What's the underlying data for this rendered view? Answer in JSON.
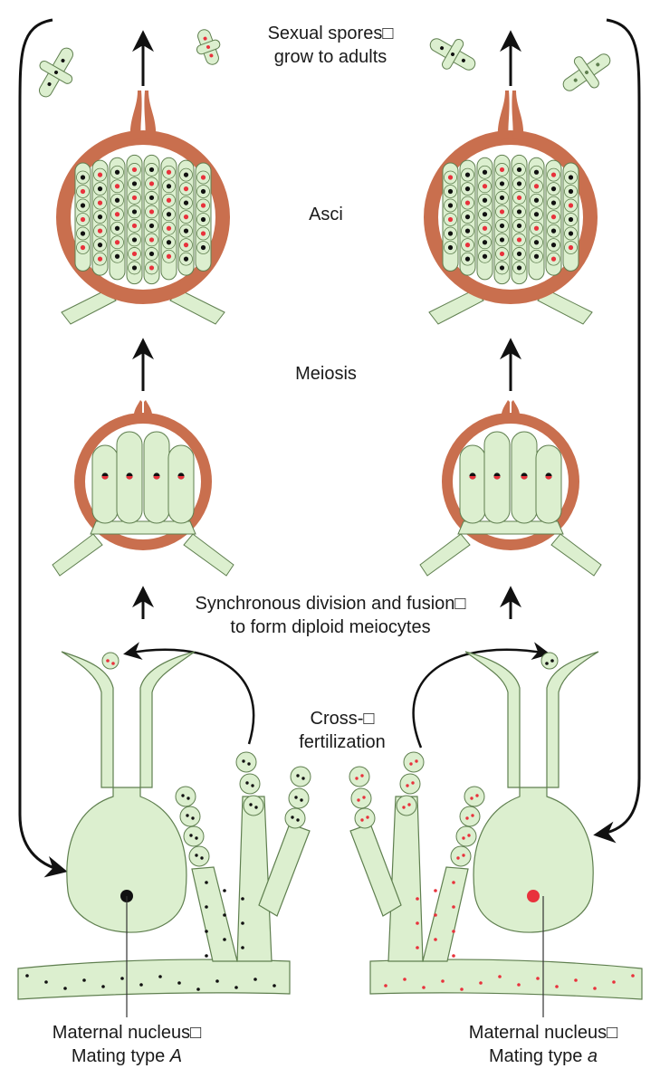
{
  "labels": {
    "sexual_spores": [
      "Sexual spores□",
      "grow to adults"
    ],
    "asci": "Asci",
    "meiosis": "Meiosis",
    "synchronous": [
      "Synchronous division and fusion□",
      "to form diploid meiocytes"
    ],
    "cross_fertilization": [
      "Cross-□",
      "fertilization"
    ],
    "left_maternal": {
      "line1": "Maternal nucleus□",
      "line2_prefix": "Mating type ",
      "line2_italic": "A"
    },
    "right_maternal": {
      "line1": "Maternal nucleus□",
      "line2_prefix": "Mating type ",
      "line2_italic": "a"
    }
  },
  "colors": {
    "cell_fill": "#dcefcf",
    "cell_stroke": "#5f7f4f",
    "perithecium": "#c96f4e",
    "nucleus_A": "#111111",
    "nucleus_a": "#e8323c",
    "arrow": "#111111"
  },
  "icons": [
    "arrow-up-icon",
    "curved-arrow-icon"
  ]
}
